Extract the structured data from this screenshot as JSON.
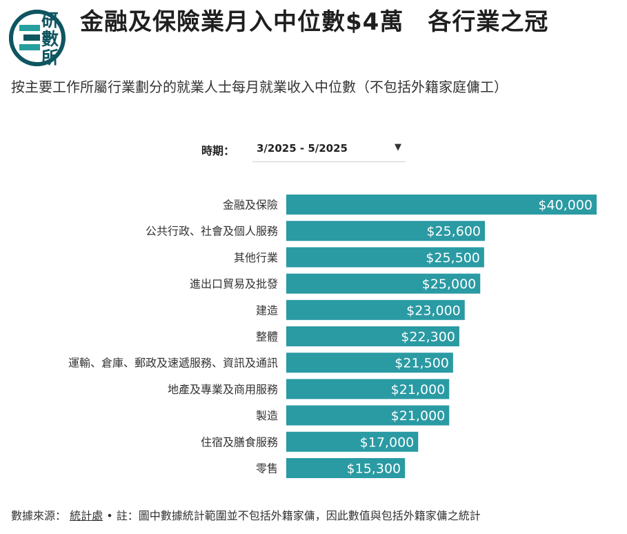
{
  "header": {
    "logo_chars": [
      "研",
      "數",
      "所"
    ],
    "title": "金融及保險業月入中位數$4萬　各行業之冠",
    "subtitle": "按主要工作所屬行業劃分的就業人士每月就業收入中位數（不包括外籍家庭傭工）"
  },
  "period": {
    "label": "時期：",
    "value": "3/2025 - 5/2025",
    "caret_icon": "caret-down-icon"
  },
  "colors": {
    "bar": "#2a9aa3",
    "logo": "#0e5560",
    "logo_accent": "#25a09e"
  },
  "chart_data": {
    "type": "bar",
    "orientation": "horizontal",
    "categories": [
      "金融及保險",
      "公共行政、社會及個人服務",
      "其他行業",
      "進出口貿易及批發",
      "建造",
      "整體",
      "運輸、倉庫、郵政及速遞服務、資訊及通訊",
      "地產及專業及商用服務",
      "製造",
      "住宿及膳食服務",
      "零售"
    ],
    "values": [
      40000,
      25600,
      25500,
      25000,
      23000,
      22300,
      21500,
      21000,
      21000,
      17000,
      15300
    ],
    "value_labels": [
      "$40,000",
      "$25,600",
      "$25,500",
      "$25,000",
      "$23,000",
      "$22,300",
      "$21,500",
      "$21,000",
      "$21,000",
      "$17,000",
      "$15,300"
    ],
    "xlim": [
      0,
      40000
    ],
    "grid": false,
    "legend": "none"
  },
  "footer": {
    "source_label": "數據來源：",
    "source_link": "統計處",
    "separator": "•",
    "note": "註：圖中數據統計範圍並不包括外籍家傭，因此數值與包括外籍家傭之統計"
  }
}
